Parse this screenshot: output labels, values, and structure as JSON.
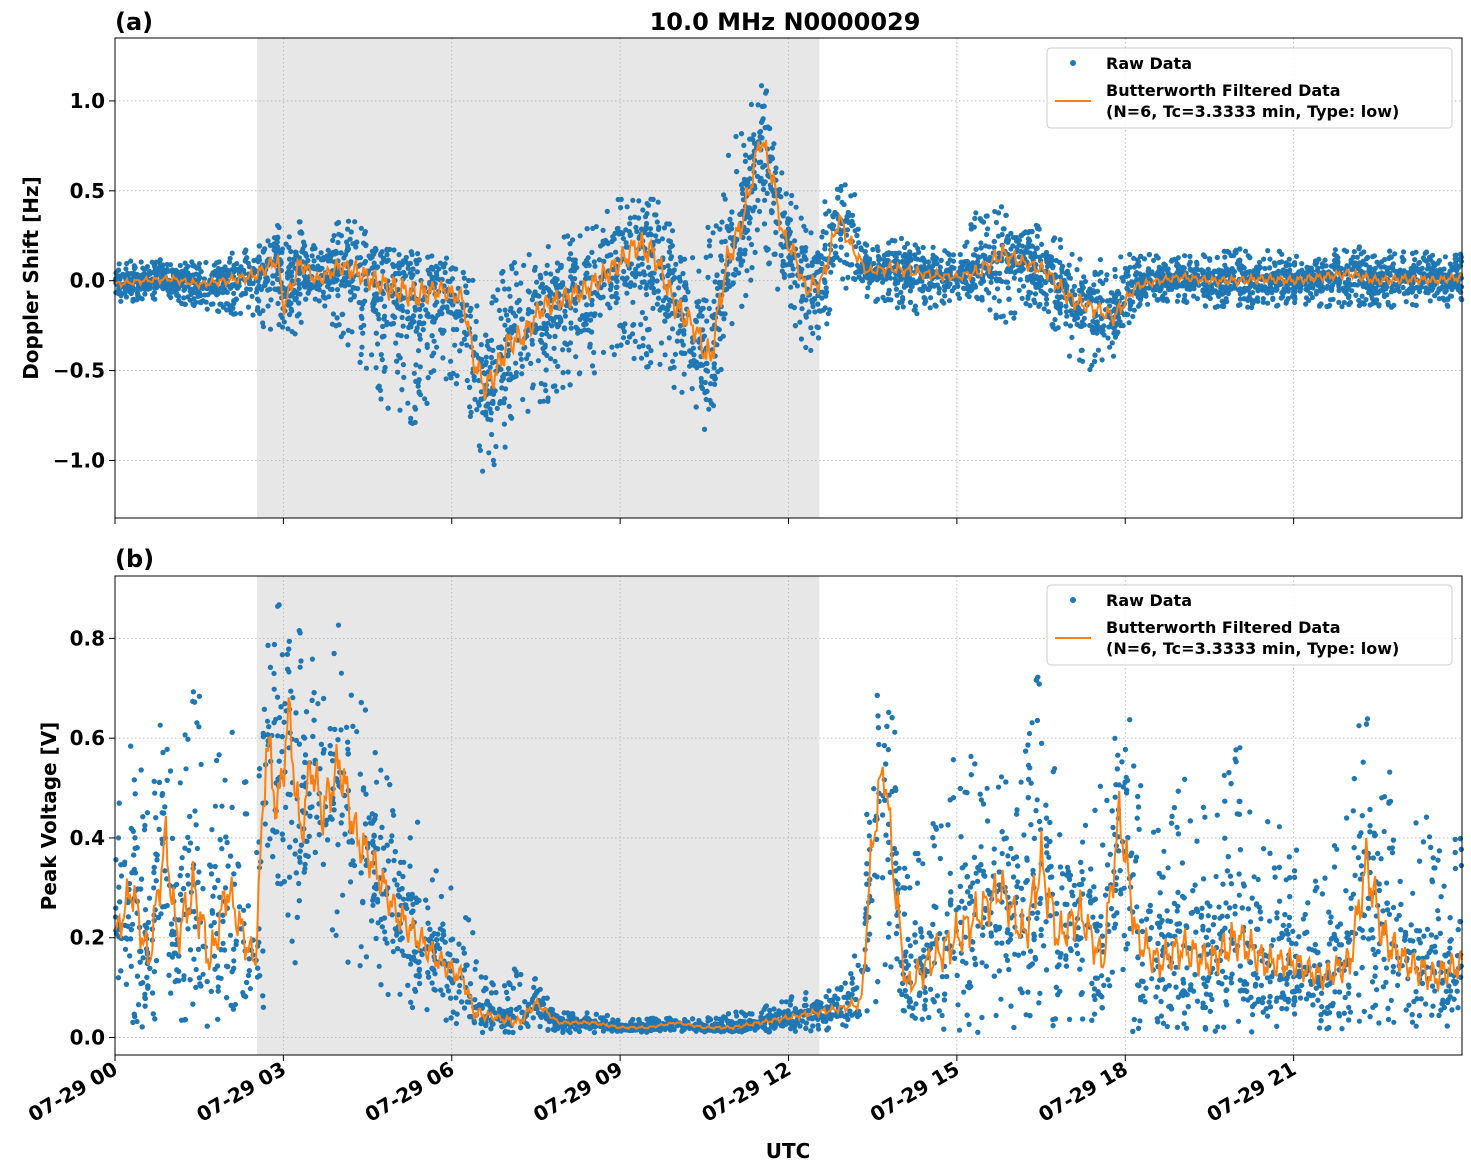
{
  "figure": {
    "title": "10.0 MHz N0000029",
    "xlabel": "UTC",
    "x_tick_labels": [
      "07-29 00",
      "07-29 03",
      "07-29 06",
      "07-29 09",
      "07-29 12",
      "07-29 15",
      "07-29 18",
      "07-29 21"
    ],
    "shaded_span_hours": [
      2.53,
      12.55
    ],
    "colors": {
      "raw": "#1f77b4",
      "filtered": "#ff7f0e",
      "shade": "#e7e7e7",
      "grid": "#b0b0b0"
    }
  },
  "chart_data": [
    {
      "type": "scatter",
      "panel_label": "(a)",
      "ylabel": "Doppler Shift [Hz]",
      "xlim_hours": [
        0,
        24
      ],
      "ylim": [
        -1.32,
        1.35
      ],
      "y_ticks": [
        1.0,
        0.5,
        0.0,
        -0.5,
        -1.0
      ],
      "y_tick_labels": [
        "1.0",
        "0.5",
        "0.0",
        "−0.5",
        "−1.0"
      ],
      "legend": [
        "Raw Data",
        "Butterworth Filtered Data",
        "(N=6, Tc=3.3333 min, Type: low)"
      ],
      "legend_position": "top-right",
      "grid": true,
      "series": [
        {
          "name": "Butterworth Filtered Data",
          "x_hours": [
            0,
            0.5,
            1.0,
            1.5,
            2.0,
            2.5,
            2.9,
            3.0,
            3.3,
            3.6,
            4.0,
            4.3,
            4.6,
            5.0,
            5.4,
            5.8,
            6.2,
            6.4,
            6.6,
            6.8,
            7.0,
            7.3,
            7.6,
            8.0,
            8.4,
            8.8,
            9.0,
            9.3,
            9.6,
            10.0,
            10.3,
            10.6,
            10.9,
            11.2,
            11.5,
            11.7,
            11.9,
            12.1,
            12.3,
            12.6,
            12.9,
            13.1,
            13.4,
            13.8,
            14.2,
            14.6,
            15.0,
            15.4,
            15.8,
            16.2,
            16.6,
            17.0,
            17.4,
            17.8,
            18.2,
            18.6,
            19.0,
            19.5,
            20.0,
            20.5,
            21.0,
            21.5,
            22.0,
            22.5,
            23.0,
            23.5,
            24.0
          ],
          "values": [
            -0.02,
            0.0,
            0.01,
            -0.02,
            0.0,
            0.03,
            0.12,
            -0.15,
            0.1,
            0.0,
            0.08,
            0.05,
            0.0,
            -0.05,
            -0.08,
            -0.05,
            -0.1,
            -0.45,
            -0.6,
            -0.5,
            -0.35,
            -0.3,
            -0.15,
            -0.1,
            -0.05,
            0.05,
            0.1,
            0.2,
            0.15,
            -0.15,
            -0.25,
            -0.45,
            0.1,
            0.35,
            0.8,
            0.6,
            0.25,
            0.15,
            -0.05,
            0.0,
            0.35,
            0.2,
            0.05,
            0.07,
            0.05,
            0.03,
            0.02,
            0.05,
            0.15,
            0.1,
            0.05,
            -0.1,
            -0.15,
            -0.2,
            -0.03,
            0.0,
            0.02,
            0.0,
            0.0,
            0.01,
            0.0,
            0.02,
            0.04,
            0.0,
            0.01,
            0.0,
            0.02
          ]
        },
        {
          "name": "Raw Data",
          "x_hours": [
            0,
            0.5,
            1.0,
            1.5,
            2.0,
            2.5,
            2.9,
            3.0,
            3.3,
            3.6,
            4.0,
            4.3,
            4.6,
            5.0,
            5.4,
            5.8,
            6.2,
            6.4,
            6.6,
            6.8,
            7.0,
            7.3,
            7.6,
            8.0,
            8.4,
            8.8,
            9.0,
            9.3,
            9.6,
            10.0,
            10.3,
            10.6,
            10.9,
            11.2,
            11.5,
            11.7,
            11.9,
            12.1,
            12.3,
            12.6,
            12.9,
            13.1,
            13.4,
            13.8,
            14.2,
            14.6,
            15.0,
            15.4,
            15.8,
            16.2,
            16.6,
            17.0,
            17.4,
            17.8,
            18.2,
            18.6,
            19.0,
            19.5,
            20.0,
            20.5,
            21.0,
            21.5,
            22.0,
            22.5,
            23.0,
            23.5,
            24.0
          ],
          "upper": [
            0.1,
            0.12,
            0.13,
            0.1,
            0.15,
            0.2,
            0.32,
            0.25,
            0.38,
            0.2,
            0.35,
            0.4,
            0.2,
            0.22,
            0.2,
            0.15,
            0.1,
            0.0,
            -0.1,
            0.05,
            0.1,
            0.15,
            0.2,
            0.25,
            0.3,
            0.4,
            0.5,
            0.6,
            0.5,
            0.3,
            0.2,
            0.4,
            0.7,
            0.9,
            1.1,
            1.05,
            0.6,
            0.45,
            0.3,
            0.4,
            0.65,
            0.6,
            0.2,
            0.25,
            0.25,
            0.2,
            0.15,
            0.45,
            0.45,
            0.3,
            0.35,
            0.2,
            0.1,
            0.15,
            0.15,
            0.15,
            0.15,
            0.15,
            0.18,
            0.18,
            0.15,
            0.15,
            0.2,
            0.18,
            0.18,
            0.16,
            0.15
          ],
          "lower": [
            -0.15,
            -0.1,
            -0.12,
            -0.15,
            -0.18,
            -0.25,
            -0.3,
            -0.4,
            -0.25,
            -0.3,
            -0.3,
            -0.45,
            -0.65,
            -0.8,
            -0.85,
            -0.55,
            -0.6,
            -0.95,
            -1.1,
            -1.05,
            -0.9,
            -0.8,
            -0.7,
            -0.6,
            -0.55,
            -0.45,
            -0.45,
            -0.45,
            -0.55,
            -0.7,
            -0.75,
            -0.95,
            -0.35,
            -0.15,
            0.15,
            0.05,
            -0.15,
            -0.25,
            -0.45,
            -0.35,
            0.0,
            -0.1,
            -0.1,
            -0.15,
            -0.2,
            -0.15,
            -0.1,
            -0.1,
            -0.3,
            -0.15,
            -0.2,
            -0.45,
            -0.5,
            -0.45,
            -0.15,
            -0.12,
            -0.12,
            -0.15,
            -0.15,
            -0.15,
            -0.15,
            -0.15,
            -0.15,
            -0.15,
            -0.15,
            -0.14,
            -0.15
          ]
        }
      ]
    },
    {
      "type": "scatter",
      "panel_label": "(b)",
      "ylabel": "Peak Voltage [V]",
      "xlim_hours": [
        0,
        24
      ],
      "ylim": [
        -0.035,
        0.925
      ],
      "y_ticks": [
        0.8,
        0.6,
        0.4,
        0.2,
        0.0
      ],
      "y_tick_labels": [
        "0.8",
        "0.6",
        "0.4",
        "0.2",
        "0.0"
      ],
      "legend": [
        "Raw Data",
        "Butterworth Filtered Data",
        "(N=6, Tc=3.3333 min, Type: low)"
      ],
      "legend_position": "top-right",
      "grid": true,
      "series": [
        {
          "name": "Butterworth Filtered Data",
          "x_hours": [
            0,
            0.3,
            0.6,
            0.9,
            1.1,
            1.4,
            1.7,
            2.0,
            2.3,
            2.5,
            2.7,
            2.9,
            3.1,
            3.3,
            3.5,
            3.7,
            4.0,
            4.3,
            4.6,
            5.0,
            5.4,
            5.8,
            6.2,
            6.4,
            6.8,
            7.2,
            7.5,
            7.9,
            8.5,
            9.0,
            9.5,
            10.0,
            10.5,
            11.0,
            11.5,
            12.0,
            12.5,
            13.0,
            13.3,
            13.5,
            13.7,
            13.9,
            14.1,
            14.5,
            15.0,
            15.4,
            15.8,
            16.2,
            16.5,
            16.8,
            17.2,
            17.6,
            17.9,
            18.2,
            18.6,
            19.0,
            19.5,
            20.0,
            20.5,
            21.0,
            21.5,
            22.0,
            22.3,
            22.6,
            23.0,
            23.5,
            24.0
          ],
          "values": [
            0.2,
            0.3,
            0.15,
            0.4,
            0.2,
            0.3,
            0.15,
            0.3,
            0.2,
            0.15,
            0.6,
            0.45,
            0.65,
            0.4,
            0.55,
            0.45,
            0.55,
            0.4,
            0.35,
            0.25,
            0.2,
            0.15,
            0.12,
            0.05,
            0.04,
            0.03,
            0.07,
            0.03,
            0.03,
            0.02,
            0.02,
            0.03,
            0.02,
            0.02,
            0.03,
            0.04,
            0.05,
            0.06,
            0.07,
            0.4,
            0.55,
            0.3,
            0.1,
            0.15,
            0.2,
            0.25,
            0.3,
            0.2,
            0.35,
            0.2,
            0.25,
            0.15,
            0.45,
            0.2,
            0.15,
            0.18,
            0.15,
            0.2,
            0.15,
            0.15,
            0.12,
            0.15,
            0.35,
            0.2,
            0.15,
            0.12,
            0.15
          ]
        },
        {
          "name": "Raw Data",
          "x_hours": [
            0,
            0.3,
            0.6,
            0.9,
            1.1,
            1.4,
            1.7,
            2.0,
            2.3,
            2.5,
            2.7,
            2.9,
            3.1,
            3.3,
            3.5,
            3.7,
            4.0,
            4.3,
            4.6,
            5.0,
            5.4,
            5.8,
            6.2,
            6.4,
            6.8,
            7.2,
            7.5,
            7.9,
            8.5,
            9.0,
            9.5,
            10.0,
            10.5,
            11.0,
            11.5,
            12.0,
            12.5,
            13.0,
            13.3,
            13.5,
            13.7,
            13.9,
            14.1,
            14.5,
            15.0,
            15.4,
            15.8,
            16.2,
            16.5,
            16.8,
            17.2,
            17.6,
            17.9,
            18.2,
            18.6,
            19.0,
            19.5,
            20.0,
            20.5,
            21.0,
            21.5,
            22.0,
            22.3,
            22.6,
            23.0,
            23.5,
            24.0
          ],
          "upper": [
            0.45,
            0.6,
            0.55,
            0.7,
            0.55,
            0.75,
            0.6,
            0.65,
            0.55,
            0.4,
            0.85,
            0.88,
            0.85,
            0.87,
            0.85,
            0.82,
            0.85,
            0.75,
            0.6,
            0.5,
            0.45,
            0.35,
            0.3,
            0.2,
            0.1,
            0.15,
            0.13,
            0.05,
            0.05,
            0.04,
            0.04,
            0.04,
            0.04,
            0.05,
            0.06,
            0.08,
            0.1,
            0.12,
            0.2,
            0.75,
            0.76,
            0.65,
            0.35,
            0.5,
            0.6,
            0.6,
            0.55,
            0.6,
            0.8,
            0.55,
            0.55,
            0.5,
            0.78,
            0.55,
            0.45,
            0.55,
            0.45,
            0.6,
            0.45,
            0.4,
            0.35,
            0.5,
            0.78,
            0.6,
            0.45,
            0.45,
            0.4
          ],
          "lower": [
            0.02,
            0.02,
            0.02,
            0.03,
            0.02,
            0.03,
            0.02,
            0.05,
            0.03,
            0.03,
            0.05,
            0.1,
            0.15,
            0.15,
            0.2,
            0.15,
            0.15,
            0.12,
            0.1,
            0.05,
            0.04,
            0.03,
            0.02,
            0.01,
            0.01,
            0.01,
            0.02,
            0.01,
            0.01,
            0.01,
            0.01,
            0.01,
            0.01,
            0.01,
            0.01,
            0.01,
            0.01,
            0.02,
            0.02,
            0.05,
            0.1,
            0.05,
            0.01,
            0.01,
            0.01,
            0.01,
            0.01,
            0.01,
            0.01,
            0.01,
            0.01,
            0.01,
            0.02,
            0.01,
            0.01,
            0.01,
            0.01,
            0.01,
            0.01,
            0.01,
            0.01,
            0.01,
            0.01,
            0.01,
            0.01,
            0.01,
            0.01
          ]
        }
      ]
    }
  ]
}
